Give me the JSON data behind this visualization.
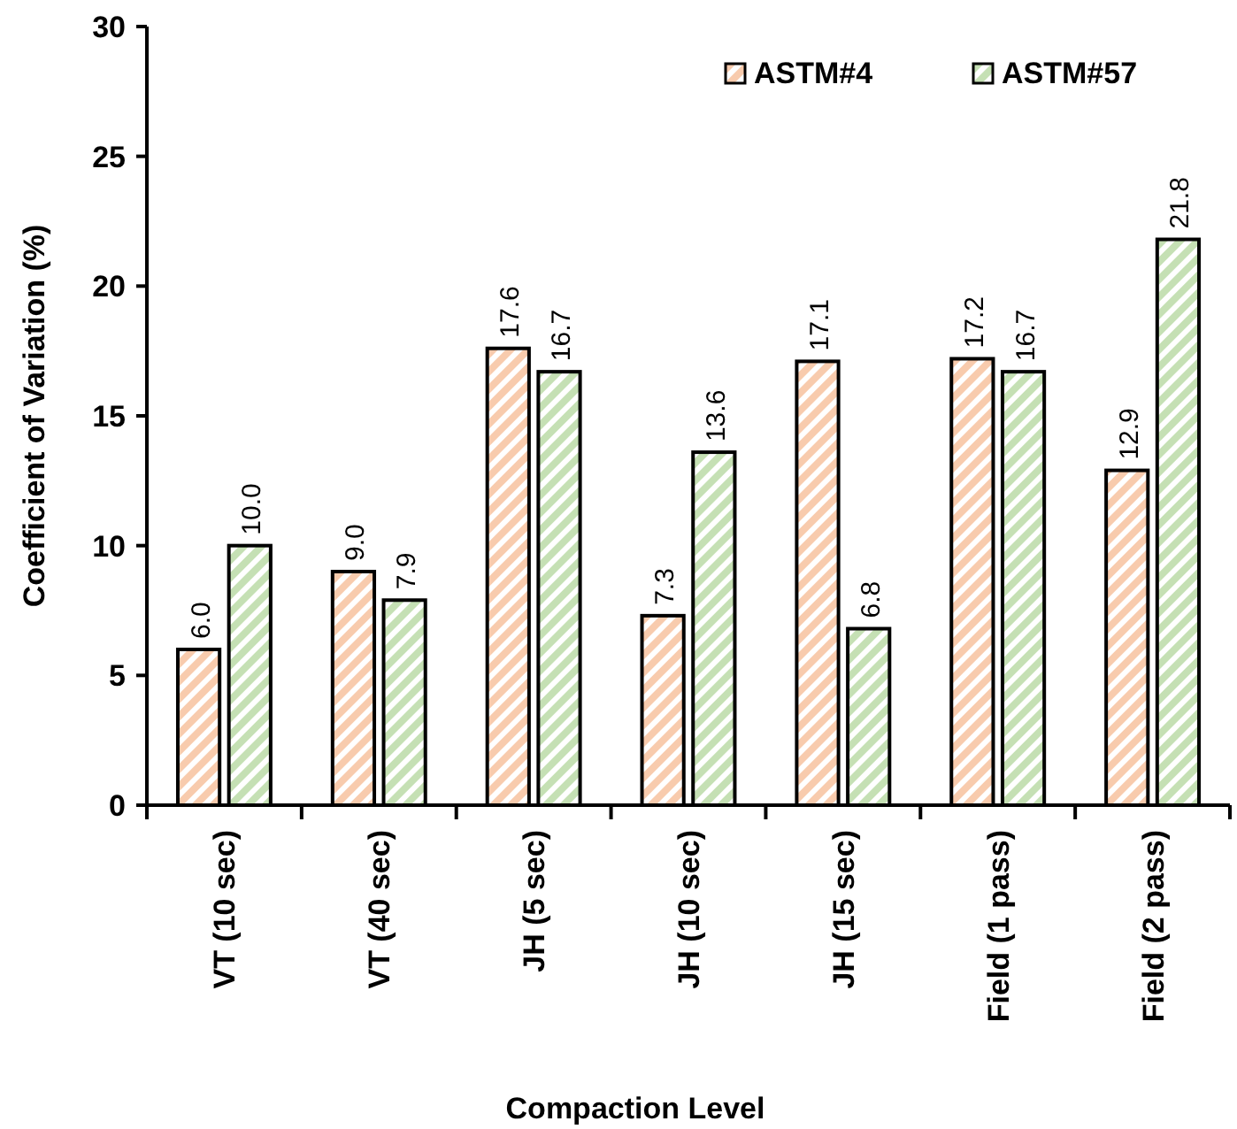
{
  "chart_data": {
    "type": "bar",
    "xlabel": "Compaction Level",
    "ylabel": "Coefficient of Variation (%)",
    "categories": [
      "VT (10 sec)",
      "VT (40 sec)",
      "JH (5 sec)",
      "JH (10 sec)",
      "JH (15 sec)",
      "Field (1 pass)",
      "Field (2 pass)"
    ],
    "series": [
      {
        "name": "ASTM#4",
        "color": "#f8cbad",
        "values": [
          6.0,
          9.0,
          17.6,
          7.3,
          17.1,
          17.2,
          12.9
        ],
        "value_labels": [
          "6.0",
          "9.0",
          "17.6",
          "7.3",
          "17.1",
          "17.2",
          "12.9"
        ]
      },
      {
        "name": "ASTM#57",
        "color": "#c5e0b4",
        "values": [
          10.0,
          7.9,
          16.7,
          13.6,
          6.8,
          16.7,
          21.8
        ],
        "value_labels": [
          "10.0",
          "7.9",
          "16.7",
          "13.6",
          "6.8",
          "16.7",
          "21.8"
        ]
      }
    ],
    "ylim": [
      0,
      30
    ],
    "yticks": [
      0,
      5,
      10,
      15,
      20,
      25,
      30
    ],
    "grid": false,
    "legend": "top right"
  }
}
